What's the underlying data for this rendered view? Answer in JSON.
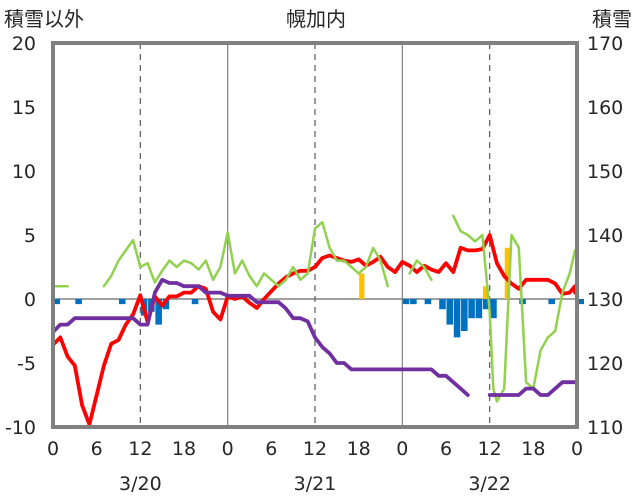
{
  "chart_data": {
    "type": "line",
    "title": "幌加内",
    "ylabel_left": "積雪以外",
    "ylabel_right": "積雪",
    "ylim_left": [
      -10,
      20
    ],
    "ylim_right": [
      110,
      170
    ],
    "yticks_left": [
      "20",
      "15",
      "10",
      "5",
      "0",
      "-5",
      "-10"
    ],
    "yticks_right": [
      "170",
      "160",
      "150",
      "140",
      "130",
      "120",
      "110"
    ],
    "x_range_hours": [
      0,
      72
    ],
    "xticks": [
      "0",
      "6",
      "12",
      "18",
      "0",
      "6",
      "12",
      "18",
      "0",
      "6",
      "12",
      "18",
      "0"
    ],
    "date_labels": [
      "3/20",
      "3/21",
      "3/22"
    ],
    "grid_dashed_hours": [
      12,
      36,
      60
    ],
    "grid_solid_hours": [
      24,
      48
    ],
    "colors": {
      "temperature": "#ff0000",
      "dewpoint": "#92d050",
      "snow_depth": "#7030a0",
      "precip": "#0070c0",
      "snowfall": "#ffc000",
      "axis": "#808080"
    },
    "series": [
      {
        "color": "#ff0000",
        "axis": "left",
        "points": [
          [
            0,
            -3.5
          ],
          [
            1,
            -3
          ],
          [
            2,
            -4.5
          ],
          [
            3,
            -5.2
          ],
          [
            4,
            -8.3
          ],
          [
            5,
            -9.8
          ],
          [
            6,
            -7.5
          ],
          [
            7,
            -5.2
          ],
          [
            8,
            -3.5
          ],
          [
            9,
            -3.2
          ],
          [
            10,
            -2
          ],
          [
            11,
            -1.2
          ],
          [
            12,
            0.3
          ],
          [
            13,
            -1.8
          ],
          [
            14,
            0.2
          ],
          [
            15,
            -0.5
          ],
          [
            16,
            0.2
          ],
          [
            17,
            0.2
          ],
          [
            18,
            0.5
          ],
          [
            19,
            0.5
          ],
          [
            20,
            1
          ],
          [
            21,
            0.8
          ],
          [
            22,
            -1
          ],
          [
            23,
            -1.6
          ],
          [
            24,
            0.2
          ],
          [
            25,
            0
          ],
          [
            26,
            0.2
          ],
          [
            27,
            -0.3
          ],
          [
            28,
            -0.7
          ],
          [
            29,
            0
          ],
          [
            30,
            0.6
          ],
          [
            31,
            1.2
          ],
          [
            32,
            1.7
          ],
          [
            33,
            2
          ],
          [
            34,
            2.2
          ],
          [
            35,
            2.2
          ],
          [
            36,
            2.5
          ],
          [
            37,
            3.2
          ],
          [
            38,
            3.4
          ],
          [
            39,
            3.2
          ],
          [
            40,
            3
          ],
          [
            41,
            2.9
          ],
          [
            42,
            3.1
          ],
          [
            43,
            2.6
          ],
          [
            44,
            2.9
          ],
          [
            45,
            3.3
          ],
          [
            46,
            2.5
          ],
          [
            47,
            2.1
          ],
          [
            48,
            2.9
          ],
          [
            49,
            2.6
          ],
          [
            50,
            2.1
          ],
          [
            51,
            2.6
          ],
          [
            52,
            2.3
          ],
          [
            53,
            2.1
          ],
          [
            54,
            2.8
          ],
          [
            55,
            2.1
          ],
          [
            56,
            4
          ],
          [
            57,
            3.8
          ],
          [
            58,
            3.8
          ],
          [
            59,
            3.9
          ],
          [
            60,
            5
          ],
          [
            61,
            2.8
          ],
          [
            62,
            1.8
          ],
          [
            63,
            1.2
          ],
          [
            64,
            0.8
          ],
          [
            65,
            1.5
          ],
          [
            66,
            1.5
          ],
          [
            67,
            1.5
          ],
          [
            68,
            1.5
          ],
          [
            69,
            1.2
          ],
          [
            70,
            0.4
          ],
          [
            71,
            0.5
          ],
          [
            72,
            1
          ],
          [
            73,
            0.5
          ]
        ]
      },
      {
        "color": "#92d050",
        "axis": "left",
        "points": [
          [
            0,
            1
          ],
          [
            2,
            1
          ],
          null,
          [
            7,
            1
          ],
          [
            8,
            1.8
          ],
          [
            9,
            3
          ],
          [
            10,
            3.8
          ],
          [
            11,
            4.6
          ],
          [
            12,
            2.5
          ],
          [
            13,
            2.8
          ],
          [
            14,
            1.3
          ],
          [
            15,
            2.2
          ],
          [
            16,
            3
          ],
          [
            17,
            2.5
          ],
          [
            18,
            3
          ],
          [
            19,
            2.8
          ],
          [
            20,
            2.3
          ],
          [
            21,
            3
          ],
          [
            22,
            1.5
          ],
          [
            23,
            2.5
          ],
          [
            24,
            5.2
          ],
          [
            25,
            2
          ],
          [
            26,
            3
          ],
          [
            27,
            1.8
          ],
          [
            28,
            1
          ],
          [
            29,
            2
          ],
          [
            30,
            1.5
          ],
          [
            31,
            1
          ],
          [
            32,
            1.5
          ],
          [
            33,
            2.5
          ],
          [
            34,
            1.5
          ],
          [
            35,
            2
          ],
          [
            36,
            5.5
          ],
          [
            37,
            6
          ],
          [
            38,
            4
          ],
          [
            39,
            3
          ],
          [
            40,
            3
          ],
          [
            41,
            2.5
          ],
          [
            42,
            2
          ],
          [
            43,
            2.5
          ],
          [
            44,
            4
          ],
          [
            45,
            3
          ],
          [
            46,
            1
          ],
          null,
          [
            49,
            2
          ],
          [
            50,
            3
          ],
          [
            51,
            2.5
          ],
          [
            52,
            1.5
          ],
          null,
          [
            55,
            6.5
          ],
          [
            56,
            5.3
          ],
          [
            57,
            5
          ],
          [
            58,
            4.5
          ],
          [
            59,
            5
          ],
          [
            60,
            -1
          ],
          [
            60.5,
            -7
          ],
          [
            61,
            -8
          ],
          [
            62,
            -7
          ],
          [
            63,
            5
          ],
          [
            64,
            4
          ],
          [
            65,
            -6.5
          ],
          [
            66,
            -7
          ],
          [
            67,
            -4
          ],
          [
            68,
            -3
          ],
          [
            69,
            -2.5
          ],
          [
            70,
            0.5
          ],
          [
            71,
            2
          ],
          [
            72,
            3.8
          ],
          [
            73,
            3.4
          ]
        ]
      },
      {
        "color": "#7030a0",
        "axis": "right",
        "points": [
          [
            0,
            125
          ],
          [
            1,
            126
          ],
          [
            2,
            126
          ],
          [
            3,
            127
          ],
          [
            4,
            127
          ],
          [
            5,
            127
          ],
          [
            6,
            127
          ],
          [
            7,
            127
          ],
          [
            8,
            127
          ],
          [
            9,
            127
          ],
          [
            10,
            127
          ],
          [
            11,
            127
          ],
          [
            12,
            126
          ],
          [
            13,
            126
          ],
          [
            14,
            131
          ],
          [
            15,
            133
          ],
          [
            16,
            132.5
          ],
          [
            17,
            132.5
          ],
          [
            18,
            132
          ],
          [
            19,
            132
          ],
          [
            20,
            132
          ],
          [
            21,
            131
          ],
          [
            22,
            131
          ],
          [
            23,
            131
          ],
          [
            24,
            130.5
          ],
          [
            25,
            130.5
          ],
          [
            26,
            130.5
          ],
          [
            27,
            130.5
          ],
          [
            28,
            129.5
          ],
          [
            29,
            129.5
          ],
          [
            30,
            129.5
          ],
          [
            31,
            129.5
          ],
          [
            32,
            128.5
          ],
          [
            33,
            127
          ],
          [
            34,
            127
          ],
          [
            35,
            126.5
          ],
          [
            36,
            124
          ],
          [
            37,
            122.5
          ],
          [
            38,
            121.5
          ],
          [
            39,
            120
          ],
          [
            40,
            120
          ],
          [
            41,
            119
          ],
          [
            42,
            119
          ],
          [
            43,
            119
          ],
          [
            44,
            119
          ],
          [
            45,
            119
          ],
          [
            46,
            119
          ],
          [
            47,
            119
          ],
          [
            48,
            119
          ],
          [
            49,
            119
          ],
          [
            50,
            119
          ],
          [
            51,
            119
          ],
          [
            52,
            119
          ],
          [
            53,
            118
          ],
          [
            54,
            118
          ],
          [
            55,
            117
          ],
          [
            56,
            116
          ],
          [
            57,
            115
          ],
          null,
          [
            60,
            115
          ],
          [
            61,
            115
          ],
          [
            62,
            115
          ],
          [
            63,
            115
          ],
          [
            64,
            115
          ],
          [
            65,
            116
          ],
          [
            66,
            116
          ],
          [
            67,
            115
          ],
          [
            68,
            115
          ],
          [
            69,
            116
          ],
          [
            70,
            117
          ],
          [
            71,
            117
          ],
          [
            72,
            117
          ],
          [
            73,
            117
          ]
        ]
      }
    ],
    "bars_precip_mm": [
      [
        0,
        -0.4
      ],
      [
        3,
        -0.4
      ],
      [
        9,
        -0.4
      ],
      [
        12,
        -1.3
      ],
      [
        13,
        -1
      ],
      [
        14,
        -2
      ],
      [
        15,
        -0.8
      ],
      [
        19,
        -0.4
      ],
      [
        48,
        -0.4
      ],
      [
        49,
        -0.4
      ],
      [
        51,
        -0.4
      ],
      [
        53,
        -0.8
      ],
      [
        54,
        -2
      ],
      [
        55,
        -3
      ],
      [
        56,
        -2.5
      ],
      [
        57,
        -1.5
      ],
      [
        58,
        -1.5
      ],
      [
        59,
        -0.8
      ],
      [
        60,
        -1.5
      ],
      [
        64,
        -0.4
      ],
      [
        68,
        -0.4
      ],
      [
        72,
        -0.4
      ]
    ],
    "bars_snowfall_cm": [
      [
        42,
        2
      ],
      [
        59,
        1
      ],
      [
        62,
        4
      ]
    ]
  }
}
